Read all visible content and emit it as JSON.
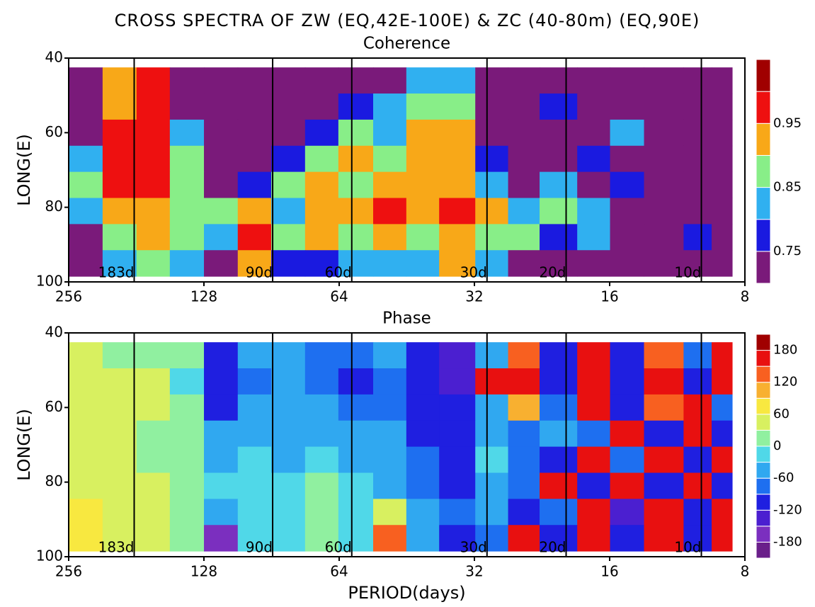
{
  "title": "CROSS SPECTRA OF ZW (EQ,42E-100E) & ZC (40-80m) (EQ,90E)",
  "chart_data": [
    {
      "type": "heatmap",
      "title": "Coherence",
      "ylabel": "LONG(E)",
      "xscale": "log",
      "xlim": [
        256,
        8
      ],
      "xticks": [
        256,
        128,
        64,
        32,
        16,
        8
      ],
      "ylim": [
        100,
        40
      ],
      "yticks": [
        40,
        60,
        80,
        100
      ],
      "ref_lines": [
        {
          "value": 183,
          "label": "183d"
        },
        {
          "value": 90,
          "label": "90d"
        },
        {
          "value": 60,
          "label": "60d"
        },
        {
          "value": 30,
          "label": "30d"
        },
        {
          "value": 20,
          "label": "20d"
        },
        {
          "value": 10,
          "label": "10d"
        }
      ],
      "levels": [
        0.75,
        0.8,
        0.85,
        0.9,
        0.95,
        0.99
      ],
      "colors": [
        "#7a1a7a",
        "#1a1ae0",
        "#30b0f0",
        "#88ee88",
        "#f8a818",
        "#ee1010",
        "#a00000"
      ],
      "cbar_ticks": [
        0.75,
        0.85,
        0.95
      ],
      "x": [
        235,
        197,
        166,
        140,
        117,
        99,
        83,
        70,
        59,
        49,
        42,
        35,
        29,
        25,
        21,
        17,
        15,
        12,
        10,
        9
      ],
      "y": [
        46,
        53,
        60,
        67,
        74,
        81,
        88,
        95
      ],
      "z": [
        [
          0.72,
          0.9,
          0.97,
          0.72,
          0.72,
          0.72,
          0.72,
          0.72,
          0.72,
          0.72,
          0.8,
          0.82,
          0.72,
          0.72,
          0.72,
          0.72,
          0.72,
          0.72,
          0.72,
          0.72
        ],
        [
          0.72,
          0.93,
          0.97,
          0.72,
          0.72,
          0.72,
          0.72,
          0.72,
          0.78,
          0.8,
          0.86,
          0.88,
          0.72,
          0.72,
          0.78,
          0.72,
          0.72,
          0.72,
          0.72,
          0.72
        ],
        [
          0.74,
          0.97,
          0.98,
          0.8,
          0.72,
          0.72,
          0.72,
          0.78,
          0.88,
          0.82,
          0.9,
          0.9,
          0.72,
          0.72,
          0.72,
          0.72,
          0.8,
          0.72,
          0.72,
          0.72
        ],
        [
          0.82,
          0.97,
          0.97,
          0.86,
          0.72,
          0.72,
          0.78,
          0.86,
          0.9,
          0.88,
          0.92,
          0.93,
          0.78,
          0.72,
          0.72,
          0.78,
          0.72,
          0.74,
          0.72,
          0.72
        ],
        [
          0.86,
          0.96,
          0.96,
          0.86,
          0.72,
          0.78,
          0.86,
          0.9,
          0.88,
          0.93,
          0.9,
          0.94,
          0.82,
          0.72,
          0.8,
          0.72,
          0.78,
          0.72,
          0.72,
          0.72
        ],
        [
          0.8,
          0.93,
          0.93,
          0.88,
          0.86,
          0.93,
          0.82,
          0.93,
          0.92,
          0.96,
          0.92,
          0.97,
          0.9,
          0.8,
          0.86,
          0.82,
          0.72,
          0.74,
          0.72,
          0.72
        ],
        [
          0.72,
          0.88,
          0.9,
          0.86,
          0.8,
          0.97,
          0.88,
          0.9,
          0.86,
          0.94,
          0.88,
          0.94,
          0.86,
          0.86,
          0.78,
          0.8,
          0.72,
          0.72,
          0.78,
          0.72
        ],
        [
          0.72,
          0.82,
          0.86,
          0.84,
          0.72,
          0.92,
          0.76,
          0.78,
          0.8,
          0.82,
          0.8,
          0.9,
          0.8,
          0.72,
          0.72,
          0.72,
          0.72,
          0.72,
          0.72,
          0.72
        ]
      ]
    },
    {
      "type": "heatmap",
      "title": "Phase",
      "ylabel": "LONG(E)",
      "xlabel": "PERIOD(days)",
      "xscale": "log",
      "xlim": [
        256,
        8
      ],
      "xticks": [
        256,
        128,
        64,
        32,
        16,
        8
      ],
      "ylim": [
        100,
        40
      ],
      "yticks": [
        40,
        60,
        80,
        100
      ],
      "ref_lines": [
        {
          "value": 183,
          "label": "183d"
        },
        {
          "value": 90,
          "label": "90d"
        },
        {
          "value": 60,
          "label": "60d"
        },
        {
          "value": 30,
          "label": "30d"
        },
        {
          "value": 20,
          "label": "20d"
        },
        {
          "value": 10,
          "label": "10d"
        }
      ],
      "levels": [
        -180,
        -150,
        -120,
        -90,
        -60,
        -30,
        0,
        30,
        60,
        90,
        120,
        150,
        180
      ],
      "colors": [
        "#6a1f8a",
        "#7b2fbf",
        "#4b1fd0",
        "#1f1fe0",
        "#1e6ff0",
        "#30a8f0",
        "#50d8e8",
        "#90f0a0",
        "#d8f060",
        "#f8e840",
        "#f8b030",
        "#f86020",
        "#e81010",
        "#a00000"
      ],
      "cbar_ticks": [
        -180,
        -120,
        -60,
        0,
        60,
        120,
        180
      ],
      "x": [
        235,
        197,
        166,
        140,
        117,
        99,
        83,
        70,
        59,
        49,
        42,
        35,
        29,
        25,
        21,
        17,
        15,
        12,
        10,
        9
      ],
      "y": [
        46,
        53,
        60,
        67,
        74,
        81,
        88,
        95
      ],
      "z": [
        [
          30,
          20,
          20,
          0,
          -100,
          -60,
          -40,
          -80,
          -90,
          -60,
          -120,
          -130,
          -60,
          120,
          -100,
          150,
          -120,
          140,
          -90,
          150
        ],
        [
          30,
          40,
          40,
          -10,
          -120,
          -70,
          -50,
          -70,
          -100,
          -70,
          -110,
          -130,
          150,
          150,
          -110,
          150,
          -120,
          150,
          -100,
          150
        ],
        [
          40,
          40,
          30,
          0,
          -110,
          -60,
          -50,
          -60,
          -80,
          -80,
          -120,
          -120,
          -40,
          100,
          -70,
          150,
          -110,
          120,
          150,
          -90
        ],
        [
          50,
          30,
          20,
          10,
          -50,
          -40,
          -40,
          -40,
          -60,
          -60,
          -100,
          -110,
          -60,
          -90,
          -60,
          -90,
          150,
          -120,
          150,
          -100
        ],
        [
          40,
          30,
          20,
          10,
          -40,
          -30,
          -40,
          -20,
          -50,
          -50,
          -90,
          -110,
          -30,
          -80,
          -120,
          150,
          -90,
          150,
          -120,
          150
        ],
        [
          50,
          40,
          30,
          20,
          -30,
          -20,
          -30,
          10,
          -30,
          -40,
          -80,
          -100,
          -40,
          -90,
          150,
          -100,
          150,
          -120,
          150,
          -110
        ],
        [
          60,
          50,
          30,
          10,
          -40,
          -10,
          -30,
          20,
          -20,
          30,
          -60,
          -90,
          -60,
          -120,
          -90,
          150,
          -130,
          150,
          -100,
          150
        ],
        [
          60,
          50,
          30,
          10,
          -160,
          -30,
          -20,
          20,
          -10,
          120,
          -60,
          -100,
          -90,
          150,
          -120,
          150,
          -100,
          150,
          -120,
          150
        ]
      ]
    }
  ]
}
